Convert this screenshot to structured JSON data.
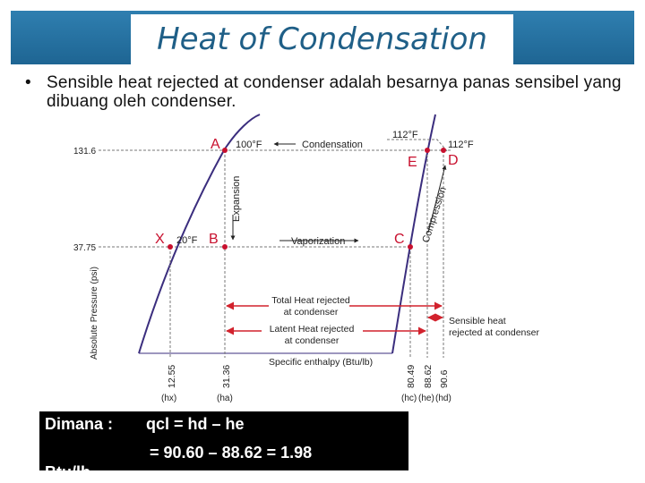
{
  "slide": {
    "title": "Heat of Condensation",
    "bullet_text": "Sensible heat rejected at condenser adalah besarnya panas sensibel yang dibuang oleh condenser."
  },
  "diagram": {
    "y_axis_label": "Absolute Pressure (psi)",
    "x_axis_label": "Specific enthalpy (Btu/lb)",
    "pressure_ticks": [
      "131.6",
      "37.75"
    ],
    "points": {
      "A": "A",
      "B": "B",
      "C": "C",
      "D": "D",
      "E": "E",
      "X": "X"
    },
    "temps": {
      "t100": "100°F",
      "t20": "20°F",
      "t112_top": "112°F",
      "t112_right": "112°F"
    },
    "process_labels": {
      "condensation": "Condensation",
      "vaporization": "Vaporization",
      "expansion": "Expansion",
      "compression": "Compression"
    },
    "heat_labels": {
      "total_1": "Total Heat rejected",
      "total_2": "at condenser",
      "latent_1": "Latent Heat rejected",
      "latent_2": "at condenser",
      "sensible_1": "Sensible heat",
      "sensible_2": "rejected at condenser"
    },
    "enthalpy_values": [
      "12.55",
      "31.36",
      "80.49",
      "88.62",
      "90.6"
    ],
    "enthalpy_symbols": [
      "(hx)",
      "(ha)",
      "(hc)",
      "(he)",
      "(hd)"
    ]
  },
  "formula": {
    "dimana": "Dimana :",
    "line1": "qcl = hd – he",
    "line2": "= 90.60 – 88.62 = 1.98",
    "line3": "Btu/lb"
  },
  "colors": {
    "accent": "#1f5f87",
    "curve": "#3b2e7e",
    "point": "#c8102e",
    "arrow": "#d2222d"
  }
}
